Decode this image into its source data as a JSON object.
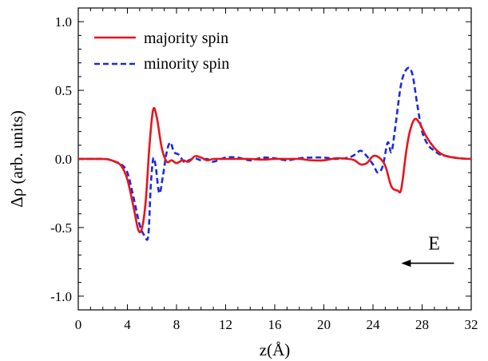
{
  "chart_data": {
    "type": "line",
    "xlabel": "z(Å)",
    "ylabel": "Δρ (arb. units)",
    "xlim": [
      0,
      32
    ],
    "ylim": [
      -1.1,
      1.1
    ],
    "x_ticks": [
      0,
      4,
      8,
      12,
      16,
      20,
      24,
      28,
      32
    ],
    "x_tick_labels": [
      "0",
      "4",
      "8",
      "12",
      "16",
      "20",
      "24",
      "28",
      "32"
    ],
    "y_ticks": [
      -1.0,
      -0.5,
      0.0,
      0.5,
      1.0
    ],
    "y_tick_labels": [
      "-1.0",
      "-0.5",
      "0.0",
      "0.5",
      "1.0"
    ],
    "grid": false,
    "legend_position": "top-left",
    "series": [
      {
        "name": "majority spin",
        "color": "#e8141c",
        "style": "solid",
        "points": [
          [
            0,
            0
          ],
          [
            2,
            0
          ],
          [
            2.5,
            -0.005
          ],
          [
            3,
            -0.02
          ],
          [
            3.5,
            -0.05
          ],
          [
            4,
            -0.15
          ],
          [
            4.5,
            -0.35
          ],
          [
            4.9,
            -0.52
          ],
          [
            5.2,
            -0.5
          ],
          [
            5.5,
            -0.3
          ],
          [
            5.8,
            0.1
          ],
          [
            6.1,
            0.36
          ],
          [
            6.4,
            0.3
          ],
          [
            6.8,
            0.08
          ],
          [
            7.2,
            -0.02
          ],
          [
            7.6,
            -0.01
          ],
          [
            8,
            -0.03
          ],
          [
            8.5,
            -0.01
          ],
          [
            9,
            -0.02
          ],
          [
            9.5,
            0.02
          ],
          [
            10,
            0.01
          ],
          [
            10.5,
            -0.01
          ],
          [
            11,
            0
          ],
          [
            12,
            0
          ],
          [
            13,
            0
          ],
          [
            14,
            0
          ],
          [
            15,
            -0.005
          ],
          [
            16,
            0
          ],
          [
            17,
            0
          ],
          [
            18,
            0
          ],
          [
            19,
            -0.01
          ],
          [
            20,
            -0.01
          ],
          [
            21,
            0.005
          ],
          [
            22,
            0
          ],
          [
            22.5,
            -0.01
          ],
          [
            23,
            -0.04
          ],
          [
            23.5,
            -0.03
          ],
          [
            24,
            0.02
          ],
          [
            24.5,
            0.01
          ],
          [
            25,
            -0.05
          ],
          [
            25.5,
            -0.2
          ],
          [
            26,
            -0.23
          ],
          [
            26.3,
            -0.22
          ],
          [
            26.7,
            0.05
          ],
          [
            27,
            0.2
          ],
          [
            27.4,
            0.29
          ],
          [
            27.8,
            0.26
          ],
          [
            28.3,
            0.17
          ],
          [
            29,
            0.08
          ],
          [
            29.5,
            0.04
          ],
          [
            30,
            0.02
          ],
          [
            31,
            0.005
          ],
          [
            32,
            0
          ]
        ]
      },
      {
        "name": "minority spin",
        "color": "#1c2bdc",
        "style": "dashed",
        "points": [
          [
            0,
            0
          ],
          [
            2,
            0
          ],
          [
            2.5,
            -0.005
          ],
          [
            3,
            -0.02
          ],
          [
            3.5,
            -0.04
          ],
          [
            4,
            -0.1
          ],
          [
            4.5,
            -0.28
          ],
          [
            5,
            -0.48
          ],
          [
            5.4,
            -0.56
          ],
          [
            5.7,
            -0.56
          ],
          [
            5.9,
            -0.2
          ],
          [
            6.1,
            0.0
          ],
          [
            6.3,
            -0.05
          ],
          [
            6.6,
            -0.25
          ],
          [
            6.9,
            -0.12
          ],
          [
            7.2,
            0.05
          ],
          [
            7.5,
            0.12
          ],
          [
            7.8,
            0.05
          ],
          [
            8.2,
            0.03
          ],
          [
            8.6,
            -0.02
          ],
          [
            9,
            -0.01
          ],
          [
            9.5,
            0.005
          ],
          [
            10,
            -0.01
          ],
          [
            10.5,
            0
          ],
          [
            11,
            -0.02
          ],
          [
            12,
            0.01
          ],
          [
            13,
            0.01
          ],
          [
            14,
            -0.01
          ],
          [
            15,
            0.01
          ],
          [
            16,
            0.005
          ],
          [
            17,
            -0.01
          ],
          [
            18,
            0.005
          ],
          [
            19,
            0.01
          ],
          [
            20,
            0.01
          ],
          [
            21,
            0
          ],
          [
            22,
            0.01
          ],
          [
            22.5,
            0.03
          ],
          [
            23,
            0.06
          ],
          [
            23.5,
            0.02
          ],
          [
            24,
            -0.04
          ],
          [
            24.4,
            -0.1
          ],
          [
            24.8,
            -0.05
          ],
          [
            25.2,
            0.12
          ],
          [
            25.5,
            0.05
          ],
          [
            25.8,
            0.22
          ],
          [
            26.3,
            0.55
          ],
          [
            26.8,
            0.66
          ],
          [
            27.2,
            0.62
          ],
          [
            27.6,
            0.4
          ],
          [
            28,
            0.2
          ],
          [
            28.5,
            0.1
          ],
          [
            29,
            0.06
          ],
          [
            29.5,
            0.03
          ],
          [
            30,
            0.02
          ],
          [
            31,
            0.005
          ],
          [
            32,
            0
          ]
        ]
      }
    ],
    "annotations": [
      {
        "text": "E",
        "x": 28.5,
        "y": -0.66,
        "arrow": "left",
        "arrow_from": 30.6,
        "arrow_to": 26.3,
        "arrow_y": -0.76
      }
    ]
  }
}
